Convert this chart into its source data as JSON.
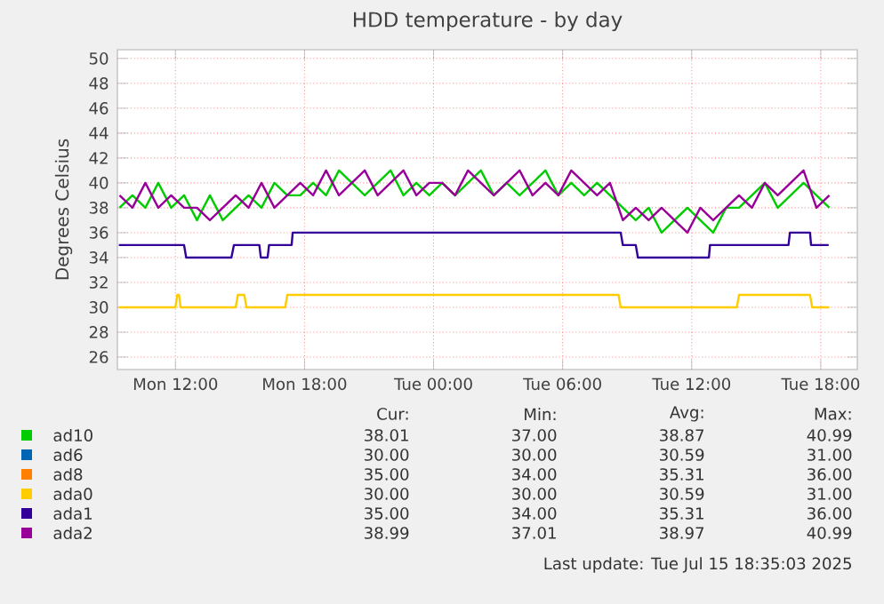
{
  "chart_data": {
    "type": "line",
    "title": "HDD temperature - by day",
    "ylabel": "Degrees Celsius",
    "x": [
      "2025-07-14T09:24",
      "2025-07-14T10:00",
      "2025-07-14T10:36",
      "2025-07-14T11:12",
      "2025-07-14T11:48",
      "2025-07-14T12:24",
      "2025-07-14T13:00",
      "2025-07-14T13:36",
      "2025-07-14T14:12",
      "2025-07-14T14:48",
      "2025-07-14T15:24",
      "2025-07-14T16:00",
      "2025-07-14T16:36",
      "2025-07-14T17:12",
      "2025-07-14T17:48",
      "2025-07-14T18:24",
      "2025-07-14T19:00",
      "2025-07-14T19:36",
      "2025-07-14T20:12",
      "2025-07-14T20:48",
      "2025-07-14T21:24",
      "2025-07-14T22:00",
      "2025-07-14T22:36",
      "2025-07-14T23:12",
      "2025-07-14T23:48",
      "2025-07-15T00:24",
      "2025-07-15T01:00",
      "2025-07-15T01:36",
      "2025-07-15T02:12",
      "2025-07-15T02:48",
      "2025-07-15T03:24",
      "2025-07-15T04:00",
      "2025-07-15T04:36",
      "2025-07-15T05:12",
      "2025-07-15T05:48",
      "2025-07-15T06:24",
      "2025-07-15T07:00",
      "2025-07-15T07:36",
      "2025-07-15T08:12",
      "2025-07-15T08:48",
      "2025-07-15T09:24",
      "2025-07-15T10:00",
      "2025-07-15T10:36",
      "2025-07-15T11:12",
      "2025-07-15T11:48",
      "2025-07-15T12:24",
      "2025-07-15T13:00",
      "2025-07-15T13:36",
      "2025-07-15T14:12",
      "2025-07-15T14:48",
      "2025-07-15T15:24",
      "2025-07-15T16:00",
      "2025-07-15T16:36",
      "2025-07-15T17:12",
      "2025-07-15T17:48",
      "2025-07-15T18:24"
    ],
    "series": [
      {
        "name": "ad10",
        "color": "#00cc00",
        "values": [
          38,
          39,
          38,
          40,
          38,
          39,
          37,
          39,
          37,
          38,
          39,
          38,
          40,
          39,
          39,
          40,
          39,
          41,
          40,
          39,
          40,
          41,
          39,
          40,
          39,
          40,
          39,
          40,
          41,
          39,
          40,
          39,
          40,
          41,
          39,
          40,
          39,
          40,
          39,
          38,
          37,
          38,
          36,
          37,
          38,
          37,
          36,
          38,
          38,
          39,
          40,
          38,
          39,
          40,
          39,
          38
        ]
      },
      {
        "name": "ad6",
        "color": "#0066b3",
        "values": [
          null,
          null,
          null,
          null,
          null,
          null,
          null,
          null,
          null,
          null,
          null,
          null,
          null,
          null,
          null,
          null,
          null,
          null,
          null,
          null,
          null,
          null,
          null,
          null,
          null,
          null,
          null,
          null,
          null,
          null,
          null,
          null,
          null,
          null,
          null,
          null,
          null,
          null,
          null,
          null,
          null,
          null,
          null,
          null,
          null,
          null,
          null,
          null,
          null,
          null,
          null,
          null,
          null,
          null,
          null,
          null
        ]
      },
      {
        "name": "ad8",
        "color": "#ff8000",
        "values": [
          null,
          null,
          null,
          null,
          null,
          null,
          null,
          null,
          null,
          null,
          null,
          null,
          null,
          null,
          null,
          null,
          null,
          null,
          null,
          null,
          null,
          null,
          null,
          null,
          null,
          null,
          null,
          null,
          null,
          null,
          null,
          null,
          null,
          null,
          null,
          null,
          null,
          null,
          null,
          null,
          null,
          null,
          null,
          null,
          null,
          null,
          null,
          null,
          null,
          null,
          null,
          null,
          null,
          null,
          null,
          null
        ]
      },
      {
        "name": "ada0",
        "color": "#ffcc00",
        "x": [
          "2025-07-14T09:22",
          "2025-07-14T12:00",
          "2025-07-14T12:05",
          "2025-07-14T12:10",
          "2025-07-14T12:14",
          "2025-07-14T14:48",
          "2025-07-14T14:54",
          "2025-07-14T15:12",
          "2025-07-14T15:18",
          "2025-07-14T17:06",
          "2025-07-14T17:12",
          "2025-07-15T08:36",
          "2025-07-15T08:42",
          "2025-07-15T14:06",
          "2025-07-15T14:12",
          "2025-07-15T17:30",
          "2025-07-15T17:36",
          "2025-07-15T18:24"
        ],
        "values": [
          30,
          30,
          31,
          31,
          30,
          30,
          31,
          31,
          30,
          30,
          31,
          31,
          30,
          30,
          31,
          31,
          30,
          30
        ]
      },
      {
        "name": "ada1",
        "color": "#330099",
        "x": [
          "2025-07-14T09:22",
          "2025-07-14T12:24",
          "2025-07-14T12:30",
          "2025-07-14T14:36",
          "2025-07-14T14:43",
          "2025-07-14T15:54",
          "2025-07-14T15:58",
          "2025-07-14T16:17",
          "2025-07-14T16:21",
          "2025-07-14T17:24",
          "2025-07-14T17:27",
          "2025-07-15T08:42",
          "2025-07-15T08:48",
          "2025-07-15T09:24",
          "2025-07-15T09:30",
          "2025-07-15T12:48",
          "2025-07-15T12:51",
          "2025-07-15T16:30",
          "2025-07-15T16:34",
          "2025-07-15T17:30",
          "2025-07-15T17:33",
          "2025-07-15T18:22"
        ],
        "values": [
          35,
          35,
          34,
          34,
          35,
          35,
          34,
          34,
          35,
          35,
          36,
          36,
          35,
          35,
          34,
          34,
          35,
          35,
          36,
          36,
          35,
          35
        ]
      },
      {
        "name": "ada2",
        "color": "#990099",
        "values": [
          39,
          38,
          40,
          38,
          39,
          38,
          38,
          37,
          38,
          39,
          38,
          40,
          38,
          39,
          40,
          39,
          41,
          39,
          40,
          41,
          39,
          40,
          41,
          39,
          40,
          40,
          39,
          41,
          40,
          39,
          40,
          41,
          39,
          40,
          39,
          41,
          40,
          39,
          40,
          37,
          38,
          37,
          38,
          37,
          36,
          38,
          37,
          38,
          39,
          38,
          40,
          39,
          40,
          41,
          38,
          39
        ]
      }
    ],
    "xlim": [
      "2025-07-14T09:18",
      "2025-07-15T19:42"
    ],
    "xticks": [
      {
        "value": "2025-07-14T12:00",
        "label": "Mon 12:00"
      },
      {
        "value": "2025-07-14T18:00",
        "label": "Mon 18:00"
      },
      {
        "value": "2025-07-15T00:00",
        "label": "Tue 00:00"
      },
      {
        "value": "2025-07-15T06:00",
        "label": "Tue 06:00"
      },
      {
        "value": "2025-07-15T12:00",
        "label": "Tue 12:00"
      },
      {
        "value": "2025-07-15T18:00",
        "label": "Tue 18:00"
      }
    ],
    "ylim": [
      25,
      50.7
    ],
    "yticks": [
      26,
      28,
      30,
      32,
      34,
      36,
      38,
      40,
      42,
      44,
      46,
      48,
      50
    ],
    "grid": true,
    "legend": "bottom",
    "annotations": [
      "Cur:",
      "Min:",
      "Avg:",
      "Max:",
      "38.01",
      "37.00",
      "38.87",
      "40.99",
      "30.00",
      "30.00",
      "30.59",
      "31.00",
      "35.00",
      "34.00",
      "35.31",
      "36.00",
      "30.00",
      "30.00",
      "30.59",
      "31.00",
      "35.00",
      "34.00",
      "35.31",
      "36.00",
      "38.99",
      "37.01",
      "38.97",
      "40.99",
      "Last update: Tue Jul 15 18:35:03 2025"
    ]
  }
}
